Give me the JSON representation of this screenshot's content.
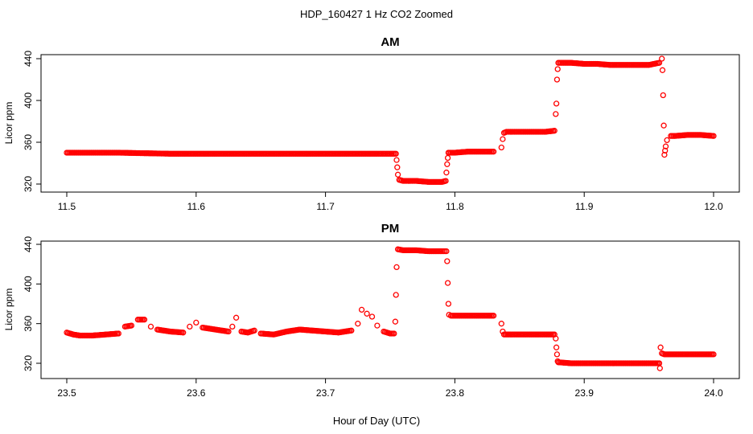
{
  "figure": {
    "title": "HDP_160427  1 Hz CO2 Zoomed",
    "xlabel": "Hour of Day (UTC)"
  },
  "chart_data": [
    {
      "type": "scatter",
      "title": "AM",
      "xlabel": "",
      "ylabel": "Licor ppm",
      "xlim": [
        11.5,
        12.0
      ],
      "ylim": [
        320,
        440
      ],
      "xticks": [
        "11.5",
        "11.6",
        "11.7",
        "11.8",
        "11.9",
        "12.0"
      ],
      "yticks": [
        "320",
        "360",
        "400",
        "440"
      ],
      "grid": false,
      "marker": "open-circle",
      "color": "#ff0000",
      "series": [
        {
          "x": [
            11.5,
            11.54,
            11.58,
            11.62,
            11.66,
            11.7,
            11.74,
            11.7545,
            11.755,
            11.7555,
            11.756,
            11.757,
            11.76,
            11.77,
            11.78,
            11.79,
            11.793,
            11.7935,
            11.794,
            11.7945,
            11.795,
            11.796,
            11.8,
            11.81,
            11.82,
            11.83,
            11.836,
            11.837,
            11.838,
            11.84,
            11.85,
            11.86,
            11.87,
            11.877,
            11.878,
            11.8785,
            11.879,
            11.8795,
            11.88,
            11.881,
            11.89,
            11.9,
            11.91,
            11.92,
            11.93,
            11.94,
            11.95,
            11.958,
            11.96,
            11.9605,
            11.961,
            11.9615,
            11.962,
            11.9625,
            11.963,
            11.964,
            11.967,
            11.97,
            11.98,
            11.99,
            12.0
          ],
          "y": [
            350,
            350,
            349,
            349,
            349,
            349,
            349,
            349,
            343,
            336,
            329,
            324,
            323,
            323,
            322,
            322,
            323,
            331,
            339,
            345,
            350,
            350,
            350,
            351,
            351,
            351,
            355,
            363,
            369,
            370,
            370,
            370,
            370,
            371,
            387,
            397,
            420,
            430,
            436,
            436,
            436,
            435,
            435,
            434,
            434,
            434,
            434,
            436,
            440,
            429,
            405,
            376,
            348,
            352,
            356,
            362,
            366,
            366,
            367,
            367,
            366
          ]
        }
      ]
    },
    {
      "type": "scatter",
      "title": "PM",
      "xlabel": "Hour of Day (UTC)",
      "ylabel": "Licor ppm",
      "xlim": [
        23.5,
        24.0
      ],
      "ylim": [
        320,
        440
      ],
      "xticks": [
        "23.5",
        "23.6",
        "23.7",
        "23.8",
        "23.9",
        "24.0"
      ],
      "yticks": [
        "320",
        "360",
        "400",
        "440"
      ],
      "grid": false,
      "marker": "open-circle",
      "color": "#ff0000",
      "series": [
        {
          "x": [
            23.5,
            23.505,
            23.51,
            23.52,
            23.53,
            23.54,
            23.545,
            23.55,
            23.555,
            23.56,
            23.565,
            23.57,
            23.575,
            23.58,
            23.59,
            23.595,
            23.6,
            23.605,
            23.61,
            23.62,
            23.625,
            23.628,
            23.631,
            23.635,
            23.64,
            23.645,
            23.65,
            23.66,
            23.67,
            23.68,
            23.69,
            23.7,
            23.71,
            23.72,
            23.725,
            23.728,
            23.732,
            23.736,
            23.74,
            23.745,
            23.75,
            23.753,
            23.754,
            23.7545,
            23.755,
            23.756,
            23.76,
            23.77,
            23.78,
            23.79,
            23.7935,
            23.794,
            23.7945,
            23.795,
            23.7955,
            23.797,
            23.8,
            23.81,
            23.82,
            23.83,
            23.836,
            23.837,
            23.838,
            23.84,
            23.85,
            23.86,
            23.87,
            23.877,
            23.878,
            23.8785,
            23.879,
            23.8795,
            23.88,
            23.89,
            23.9,
            23.91,
            23.92,
            23.93,
            23.94,
            23.95,
            23.955,
            23.958,
            23.9585,
            23.959,
            23.96,
            23.962,
            23.965,
            23.97,
            23.98,
            23.99,
            24.0
          ],
          "y": [
            351,
            349,
            348,
            348,
            349,
            350,
            357,
            358,
            364,
            364,
            357,
            354,
            353,
            352,
            351,
            357,
            361,
            356,
            355,
            353,
            352,
            357,
            366,
            352,
            351,
            353,
            350,
            349,
            352,
            354,
            353,
            352,
            351,
            353,
            360,
            374,
            370,
            367,
            358,
            352,
            350,
            350,
            362,
            389,
            417,
            435,
            434,
            434,
            433,
            433,
            433,
            423,
            401,
            380,
            369,
            368,
            368,
            368,
            368,
            368,
            360,
            352,
            349,
            349,
            349,
            349,
            349,
            349,
            345,
            336,
            329,
            322,
            321,
            320,
            320,
            320,
            320,
            320,
            320,
            320,
            320,
            320,
            315,
            336,
            330,
            329,
            329,
            329,
            329,
            329,
            329
          ]
        }
      ]
    }
  ]
}
